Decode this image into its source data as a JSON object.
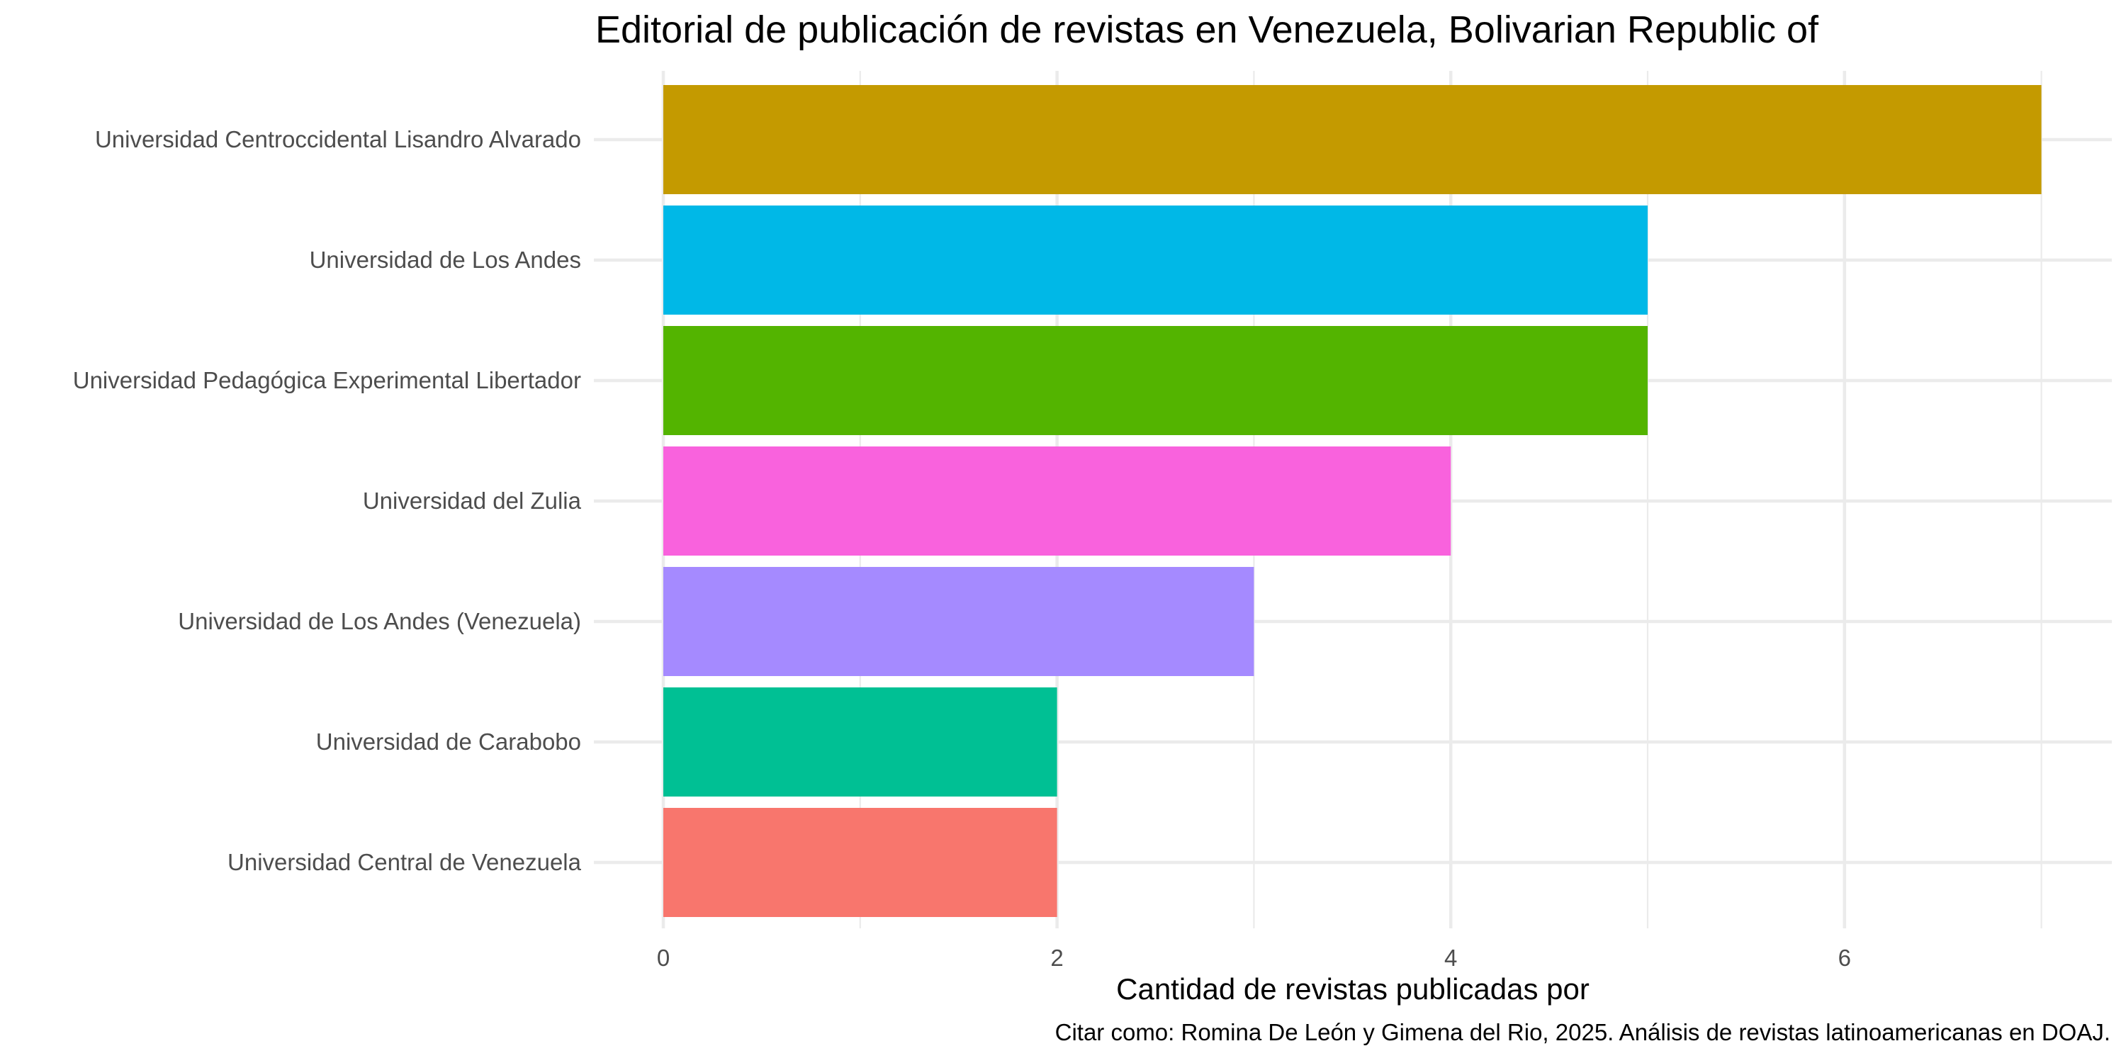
{
  "chart_data": {
    "type": "bar",
    "orientation": "horizontal",
    "title": "Editorial de publicación de revistas en Venezuela, Bolivarian Republic of",
    "xlabel": "Cantidad de revistas publicadas por",
    "ylabel": "",
    "caption": "Citar como: Romina De León y Gimena del Rio, 2025. Análisis de revistas latinoamericanas en DOAJ.",
    "xlim": [
      0,
      7
    ],
    "xticks": [
      0,
      2,
      4,
      6
    ],
    "grid": true,
    "legend": "none",
    "categories": [
      "Universidad Centroccidental Lisandro Alvarado",
      "Universidad de Los Andes",
      "Universidad Pedagógica Experimental Libertador",
      "Universidad del Zulia",
      "Universidad de Los Andes (Venezuela)",
      "Universidad de Carabobo",
      "Universidad Central de Venezuela"
    ],
    "values": [
      7,
      5,
      5,
      4,
      3,
      2,
      2
    ],
    "colors": [
      "#C49A00",
      "#00B8E7",
      "#53B400",
      "#F962DD",
      "#A58AFF",
      "#00C094",
      "#F8766D"
    ]
  }
}
